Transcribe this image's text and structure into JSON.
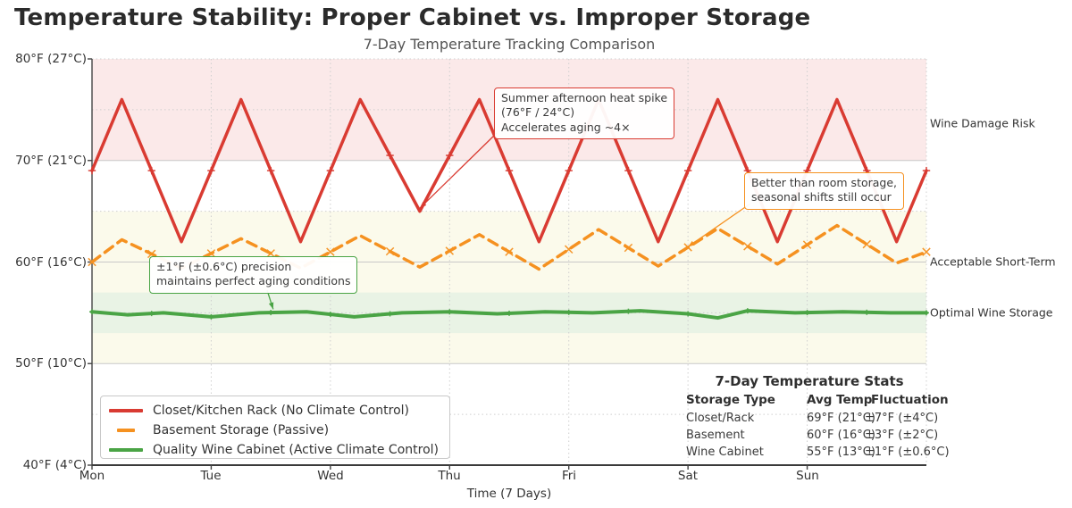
{
  "page": {
    "title": "Temperature Stability: Proper Cabinet vs. Improper Storage",
    "subtitle": "7-Day Temperature Tracking Comparison"
  },
  "chart_data": {
    "type": "line",
    "title": "Temperature Stability: Proper Cabinet vs. Improper Storage",
    "subtitle": "7-Day Temperature Tracking Comparison",
    "xlabel": "Time (7 Days)",
    "xlim_days": [
      0,
      7
    ],
    "ylim_F": [
      40,
      80
    ],
    "x_ticks": [
      "Mon",
      "Tue",
      "Wed",
      "Thu",
      "Fri",
      "Sat",
      "Sun"
    ],
    "y_ticks": [
      {
        "F": 80,
        "label": "80°F (27°C)"
      },
      {
        "F": 70,
        "label": "70°F (21°C)"
      },
      {
        "F": 60,
        "label": "60°F (16°C)"
      },
      {
        "F": 50,
        "label": "50°F (10°C)"
      },
      {
        "F": 40,
        "label": "40°F (4°C)"
      }
    ],
    "grid": {
      "major_F": [
        50,
        60,
        70
      ],
      "minor_F": [
        45,
        55,
        65,
        75,
        80
      ],
      "vertical_days": [
        1,
        2,
        3,
        4,
        5,
        6,
        7
      ]
    },
    "bands": [
      {
        "name": "wine-damage-risk",
        "fromF": 70,
        "toF": 80,
        "color": "#fbe9e9"
      },
      {
        "name": "acceptable-short-term",
        "fromF": 50,
        "toF": 65,
        "color": "#fbfaeb"
      },
      {
        "name": "optimal-wine-storage",
        "fromF": 53,
        "toF": 57,
        "color": "#e9f3e5"
      }
    ],
    "zone_labels": [
      {
        "text": "Wine Damage Risk",
        "atF": 73.7
      },
      {
        "text": "Acceptable Short-Term",
        "atF": 60
      },
      {
        "text": "Optimal Wine Storage",
        "atF": 55
      }
    ],
    "series": [
      {
        "name": "Closet/Kitchen Rack (No Climate Control)",
        "color": "#d93b32",
        "dash": false,
        "width": 3.5,
        "marker": "plus",
        "points": [
          [
            0,
            69
          ],
          [
            0.25,
            76
          ],
          [
            0.75,
            62
          ],
          [
            1.25,
            76
          ],
          [
            1.75,
            62
          ],
          [
            2.25,
            76
          ],
          [
            2.75,
            65
          ],
          [
            3.25,
            76
          ],
          [
            3.75,
            62
          ],
          [
            4.25,
            76
          ],
          [
            4.75,
            62
          ],
          [
            5.25,
            76
          ],
          [
            5.75,
            62
          ],
          [
            6.25,
            76
          ],
          [
            6.75,
            62
          ],
          [
            7,
            69
          ]
        ]
      },
      {
        "name": "Basement Storage (Passive)",
        "color": "#f59120",
        "dash": true,
        "width": 3.5,
        "marker": "x",
        "points": [
          [
            0,
            60
          ],
          [
            0.25,
            62.2
          ],
          [
            0.75,
            59.4
          ],
          [
            1.25,
            62.3
          ],
          [
            1.75,
            59.4
          ],
          [
            2.25,
            62.6
          ],
          [
            2.75,
            59.5
          ],
          [
            3.25,
            62.7
          ],
          [
            3.75,
            59.3
          ],
          [
            4.25,
            63.2
          ],
          [
            4.75,
            59.6
          ],
          [
            5.25,
            63.3
          ],
          [
            5.75,
            59.8
          ],
          [
            6.25,
            63.6
          ],
          [
            6.75,
            59.9
          ],
          [
            7,
            61
          ]
        ]
      },
      {
        "name": "Quality Wine Cabinet (Active Climate Control)",
        "color": "#4aa445",
        "dash": false,
        "width": 4,
        "marker": "plus",
        "points": [
          [
            0,
            55.1
          ],
          [
            0.3,
            54.8
          ],
          [
            0.6,
            55.0
          ],
          [
            1.0,
            54.6
          ],
          [
            1.4,
            55.0
          ],
          [
            1.8,
            55.1
          ],
          [
            2.2,
            54.6
          ],
          [
            2.6,
            55.0
          ],
          [
            3.0,
            55.1
          ],
          [
            3.4,
            54.9
          ],
          [
            3.8,
            55.1
          ],
          [
            4.2,
            55.0
          ],
          [
            4.6,
            55.2
          ],
          [
            5.0,
            54.9
          ],
          [
            5.25,
            54.5
          ],
          [
            5.5,
            55.2
          ],
          [
            5.9,
            55.0
          ],
          [
            6.3,
            55.1
          ],
          [
            6.7,
            55.0
          ],
          [
            7.0,
            55.0
          ]
        ]
      }
    ],
    "annotations": [
      {
        "id": "heat-spike",
        "color": "#d93b32",
        "lines": [
          "Summer afternoon heat spike",
          "(76°F / 24°C)",
          "Accelerates aging ~4×"
        ],
        "target": {
          "day": 2.75,
          "tempF": 65.3
        }
      },
      {
        "id": "basement-shifts",
        "color": "#f59120",
        "lines": [
          "Better than room storage,",
          "seasonal shifts still occur"
        ],
        "target": {
          "day": 5.0,
          "tempF": 61.5
        }
      },
      {
        "id": "cabinet-precision",
        "color": "#4aa445",
        "lines": [
          "±1°F (±0.6°C) precision",
          "maintains perfect aging conditions"
        ],
        "target": {
          "day": 1.52,
          "tempF": 55.35
        }
      }
    ],
    "legend": {
      "items": [
        {
          "label": "Closet/Kitchen Rack (No Climate Control)",
          "color": "#d93b32",
          "dash": false
        },
        {
          "label": "Basement Storage (Passive)",
          "color": "#f59120",
          "dash": true
        },
        {
          "label": "Quality Wine Cabinet (Active Climate Control)",
          "color": "#4aa445",
          "dash": false
        }
      ]
    },
    "stats_table": {
      "title": "7-Day Temperature Stats",
      "headers": [
        "Storage Type",
        "Avg Temp",
        "Fluctuation"
      ],
      "rows": [
        [
          "Closet/Rack",
          "69°F (21°C)",
          "±7°F (±4°C)"
        ],
        [
          "Basement",
          "60°F (16°C)",
          "±3°F (±2°C)"
        ],
        [
          "Wine Cabinet",
          "55°F (13°C)",
          "±1°F (±0.6°C)"
        ]
      ]
    }
  }
}
